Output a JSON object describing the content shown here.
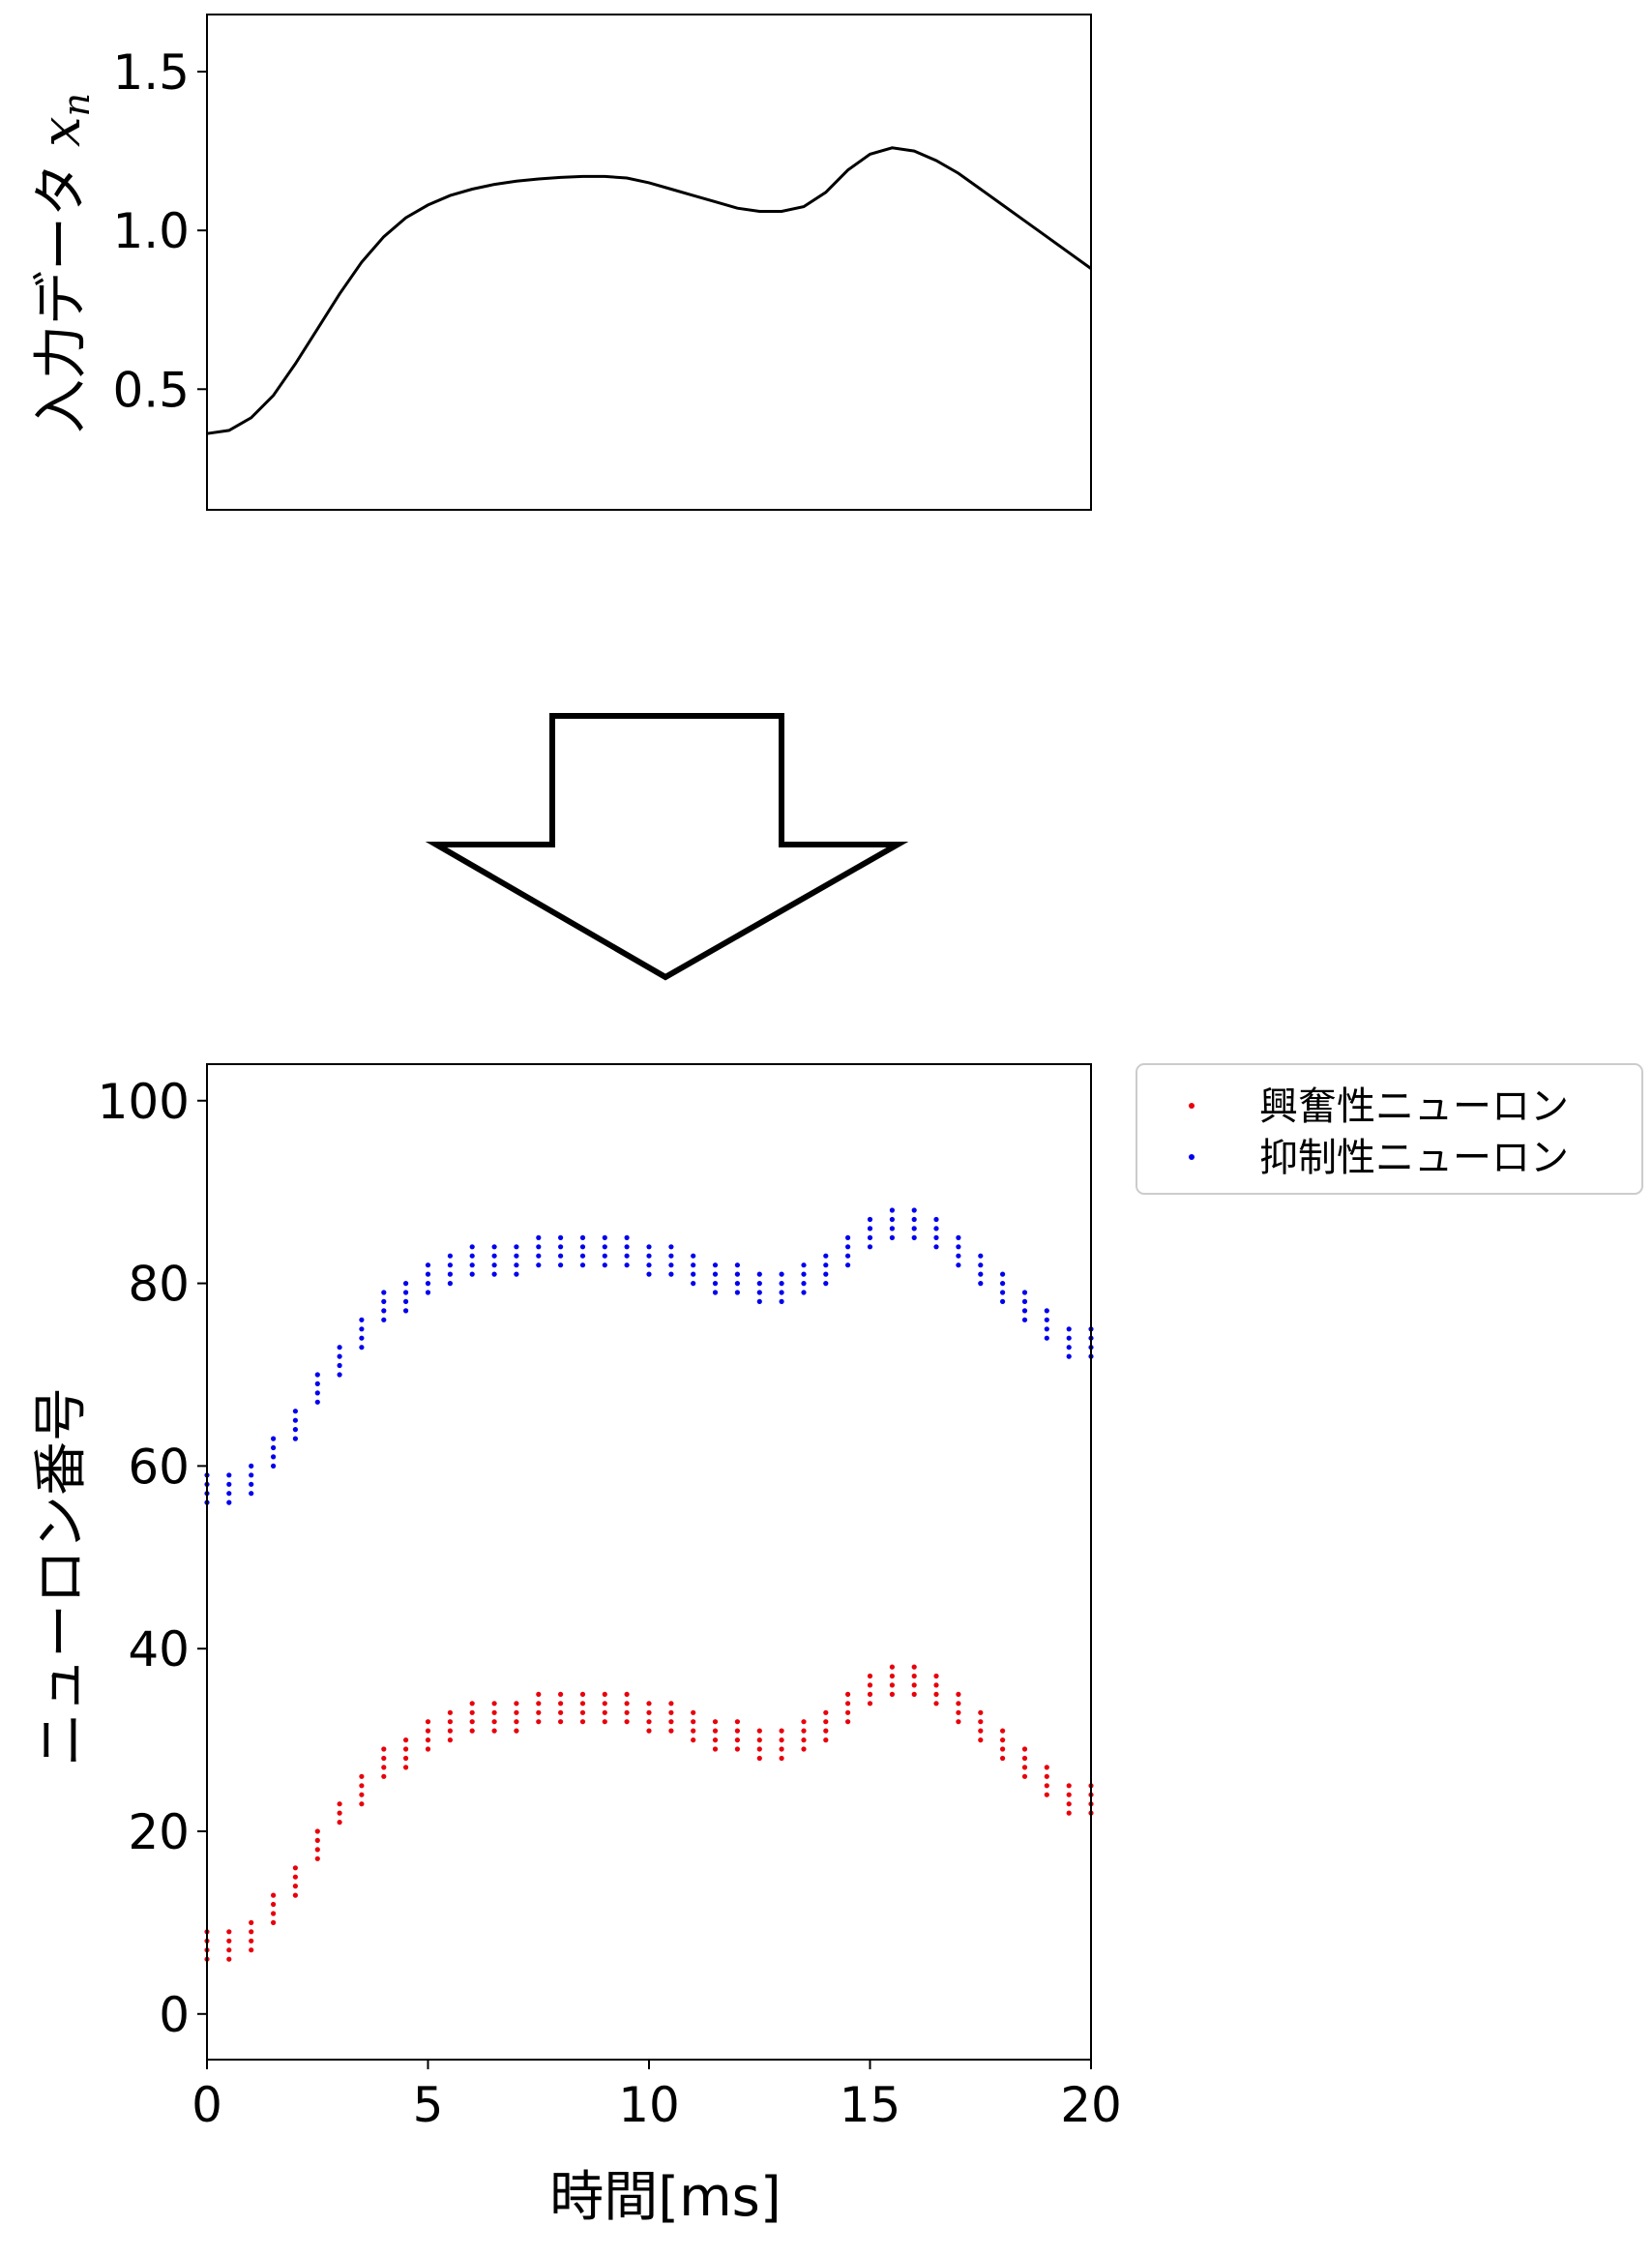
{
  "chart_data": [
    {
      "type": "line",
      "title": "",
      "xlabel": "",
      "ylabel": "入力データ",
      "ylabel_math": "x",
      "ylabel_math_sub": "n",
      "xlim": [
        0,
        20
      ],
      "ylim": [
        0.12,
        1.68
      ],
      "yticks": [
        {
          "value": 0.5,
          "label": "0.5"
        },
        {
          "value": 1.0,
          "label": "1.0"
        },
        {
          "value": 1.5,
          "label": "1.5"
        }
      ],
      "grid": false,
      "line_color": "#000000",
      "series": [
        {
          "x": [
            0,
            0.5,
            1,
            1.5,
            2,
            2.5,
            3,
            3.5,
            4,
            4.5,
            5,
            5.5,
            6,
            6.5,
            7,
            7.5,
            8,
            8.5,
            9,
            9.5,
            10,
            10.5,
            11,
            11.5,
            12,
            12.5,
            13,
            13.5,
            14,
            14.5,
            15,
            15.5,
            16,
            16.5,
            17,
            17.5,
            18,
            18.5,
            19,
            19.5,
            20
          ],
          "values": [
            0.36,
            0.37,
            0.41,
            0.48,
            0.58,
            0.69,
            0.8,
            0.9,
            0.98,
            1.04,
            1.08,
            1.11,
            1.13,
            1.145,
            1.155,
            1.162,
            1.167,
            1.17,
            1.17,
            1.165,
            1.15,
            1.13,
            1.11,
            1.09,
            1.07,
            1.06,
            1.06,
            1.075,
            1.12,
            1.19,
            1.24,
            1.26,
            1.25,
            1.22,
            1.18,
            1.13,
            1.08,
            1.03,
            0.98,
            0.93,
            0.88
          ]
        }
      ]
    },
    {
      "type": "scatter",
      "title": "",
      "xlabel": "時間[ms]",
      "ylabel": "ニューロン番号",
      "xlim": [
        0,
        20
      ],
      "ylim": [
        -5,
        104
      ],
      "xticks": [
        {
          "value": 0,
          "label": "0"
        },
        {
          "value": 5,
          "label": "5"
        },
        {
          "value": 10,
          "label": "10"
        },
        {
          "value": 15,
          "label": "15"
        },
        {
          "value": 20,
          "label": "20"
        }
      ],
      "yticks": [
        {
          "value": 0,
          "label": "0"
        },
        {
          "value": 20,
          "label": "20"
        },
        {
          "value": 40,
          "label": "40"
        },
        {
          "value": 60,
          "label": "60"
        },
        {
          "value": 80,
          "label": "80"
        },
        {
          "value": 100,
          "label": "100"
        }
      ],
      "grid": false,
      "legend_position": "outside-top-right",
      "spike_times": [
        0,
        0.5,
        1,
        1.5,
        2,
        2.5,
        3,
        3.5,
        4,
        4.5,
        5,
        5.5,
        6,
        6.5,
        7,
        7.5,
        8,
        8.5,
        9,
        9.5,
        10,
        10.5,
        11,
        11.5,
        12,
        12.5,
        13,
        13.5,
        14,
        14.5,
        15,
        15.5,
        16,
        16.5,
        17,
        17.5,
        18,
        18.5,
        19,
        19.5,
        20
      ],
      "series": [
        {
          "name": "興奮性ニューロン",
          "color": "#e8000b",
          "neuron_low": [
            6,
            6,
            7,
            10,
            13,
            17,
            21,
            23,
            26,
            27,
            29,
            30,
            31,
            31,
            31,
            32,
            32,
            32,
            32,
            32,
            31,
            31,
            30,
            29,
            29,
            28,
            28,
            29,
            30,
            32,
            34,
            35,
            35,
            34,
            32,
            30,
            28,
            26,
            24,
            22,
            22
          ],
          "neuron_high": [
            9,
            9,
            10,
            13,
            16,
            20,
            23,
            26,
            29,
            30,
            32,
            33,
            34,
            34,
            34,
            35,
            35,
            35,
            35,
            35,
            34,
            34,
            33,
            32,
            32,
            31,
            31,
            32,
            33,
            35,
            37,
            38,
            38,
            37,
            35,
            33,
            31,
            29,
            27,
            25,
            25
          ]
        },
        {
          "name": "抑制性ニューロン",
          "color": "#0000ee",
          "neuron_low": [
            56,
            56,
            57,
            60,
            63,
            67,
            70,
            73,
            76,
            77,
            79,
            80,
            81,
            81,
            81,
            82,
            82,
            82,
            82,
            82,
            81,
            81,
            80,
            79,
            79,
            78,
            78,
            79,
            80,
            82,
            84,
            85,
            85,
            84,
            82,
            80,
            78,
            76,
            74,
            72,
            72
          ],
          "neuron_high": [
            59,
            59,
            60,
            63,
            66,
            70,
            73,
            76,
            79,
            80,
            82,
            83,
            84,
            84,
            84,
            85,
            85,
            85,
            85,
            85,
            84,
            84,
            83,
            82,
            82,
            81,
            81,
            82,
            83,
            85,
            87,
            88,
            88,
            87,
            85,
            83,
            81,
            79,
            77,
            75,
            75
          ]
        }
      ]
    }
  ]
}
